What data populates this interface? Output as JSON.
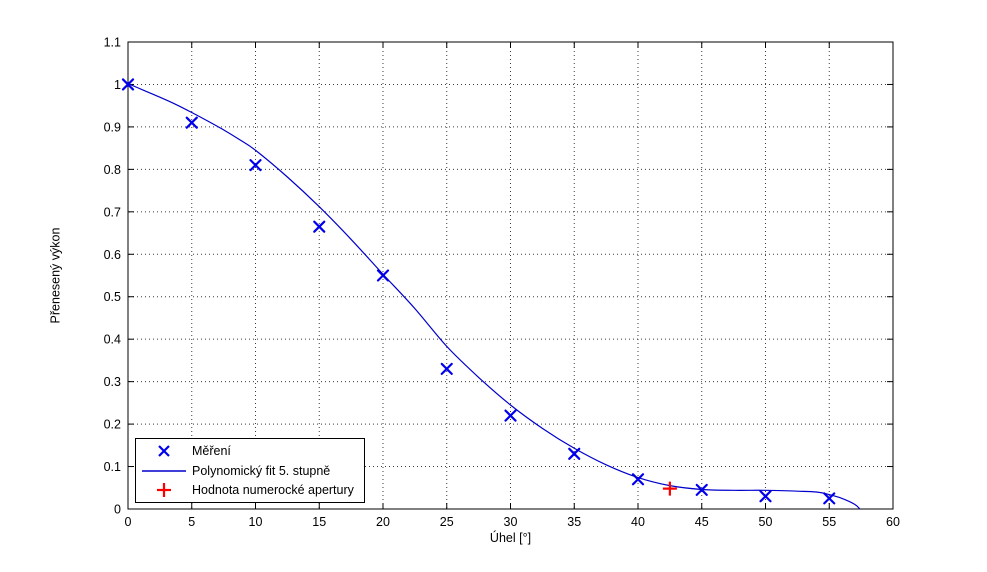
{
  "chart_data": {
    "type": "scatter",
    "title": "",
    "xlabel": "Úhel [°]",
    "ylabel": "Přenesený výkon",
    "xlim": [
      0,
      60
    ],
    "ylim": [
      0,
      1.1
    ],
    "xticks": [
      0,
      5,
      10,
      15,
      20,
      25,
      30,
      35,
      40,
      45,
      50,
      55,
      60
    ],
    "xtick_labels": [
      "0",
      "5",
      "10",
      "15",
      "20",
      "25",
      "30",
      "35",
      "40",
      "45",
      "50",
      "55",
      "60"
    ],
    "yticks": [
      0,
      0.1,
      0.2,
      0.3,
      0.4,
      0.5,
      0.6,
      0.7,
      0.8,
      0.9,
      1.0,
      1.1
    ],
    "ytick_labels": [
      "0",
      "0.1",
      "0.2",
      "0.3",
      "0.4",
      "0.5",
      "0.6",
      "0.7",
      "0.8",
      "0.9",
      "1",
      "1.1"
    ],
    "grid": true,
    "colors": {
      "measurement": "#0000EE",
      "fit_line": "#0000CC",
      "aperture": "#FF0000",
      "grid": "#3c3c3c",
      "axis": "#000000",
      "background": "#ffffff"
    },
    "series": [
      {
        "name": "Měření",
        "type": "scatter",
        "marker": "x",
        "color": "#0000EE",
        "size": 5,
        "x": [
          0,
          5,
          10,
          15,
          20,
          25,
          30,
          35,
          40,
          45,
          50,
          55
        ],
        "y": [
          1.0,
          0.91,
          0.81,
          0.665,
          0.55,
          0.33,
          0.22,
          0.13,
          0.07,
          0.045,
          0.03,
          0.025
        ]
      },
      {
        "name": "Polynomický fit 5. stupně",
        "type": "line",
        "color": "#0000CC",
        "x": [
          0,
          1.25,
          2.5,
          3.75,
          5,
          6.25,
          7.5,
          8.75,
          10,
          12.5,
          15,
          17.5,
          20,
          22.5,
          25,
          27.5,
          30,
          32.5,
          35,
          37.5,
          40,
          42.5,
          45,
          47.5,
          50,
          52.5,
          54,
          55,
          56,
          57,
          57.4
        ],
        "y": [
          1.002,
          0.986,
          0.97,
          0.953,
          0.934,
          0.914,
          0.893,
          0.87,
          0.845,
          0.782,
          0.712,
          0.635,
          0.553,
          0.472,
          0.383,
          0.31,
          0.245,
          0.19,
          0.143,
          0.104,
          0.074,
          0.055,
          0.046,
          0.044,
          0.044,
          0.042,
          0.04,
          0.034,
          0.025,
          0.011,
          0.0
        ]
      },
      {
        "name": "Hodnota numerocké apertury",
        "type": "scatter",
        "marker": "plus",
        "color": "#FF0000",
        "size": 7,
        "x": [
          42.5
        ],
        "y": [
          0.048
        ]
      }
    ],
    "legend": {
      "position": "bottom-left",
      "entries": [
        {
          "label": "Měření",
          "marker": "x",
          "color": "#0000EE"
        },
        {
          "label": "Polynomický fit 5. stupně",
          "marker": "line",
          "color": "#0000CC"
        },
        {
          "label": "Hodnota numerocké apertury",
          "marker": "plus",
          "color": "#FF0000"
        }
      ]
    }
  }
}
